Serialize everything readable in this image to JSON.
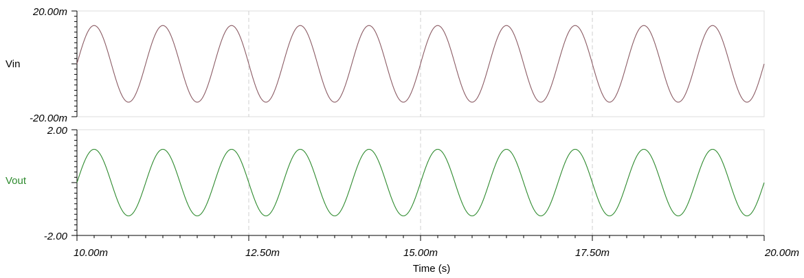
{
  "chart_data": {
    "type": "line",
    "x": {
      "label": "Time (s)",
      "range": [
        0.01,
        0.02
      ],
      "tick_labels": [
        "10.00m",
        "12.50m",
        "15.00m",
        "17.50m",
        "20.00m"
      ]
    },
    "grid": {
      "vertical_dashed": true
    },
    "panels": [
      {
        "name": "Vin",
        "color": "#8a5a63",
        "ylim": [
          -0.02,
          0.02
        ],
        "y_tick_labels": [
          "20.00m",
          "-20.00m"
        ],
        "waveform": {
          "shape": "sine",
          "amplitude": 0.0145,
          "frequency_hz": 1000,
          "phase_at_start": 0
        }
      },
      {
        "name": "Vout",
        "color": "#2d8a2d",
        "ylim": [
          -2.0,
          2.0
        ],
        "y_tick_labels": [
          "2.00",
          "-2.00"
        ],
        "waveform": {
          "shape": "sine",
          "amplitude": 1.26,
          "frequency_hz": 1000,
          "phase_at_start": 0
        }
      }
    ]
  }
}
